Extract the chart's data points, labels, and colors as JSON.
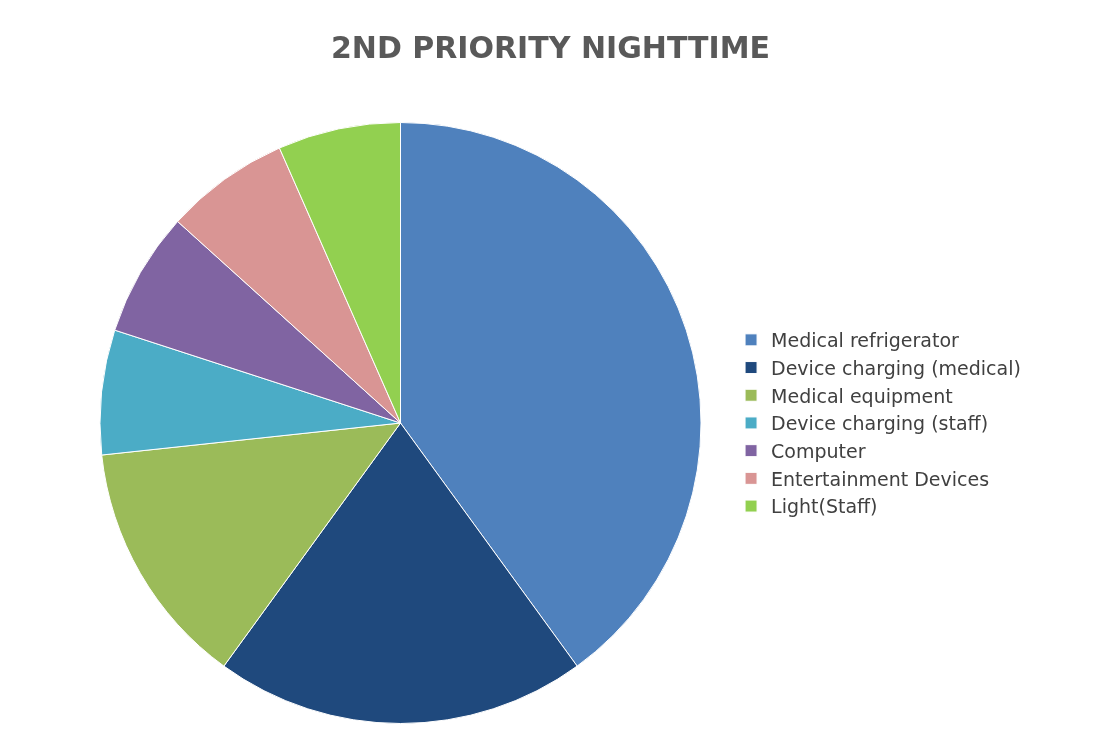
{
  "chart_data": {
    "type": "pie",
    "title": "2ND PRIORITY NIGHTTIME",
    "categories": [
      "Medical refrigerator",
      "Device charging (medical)",
      "Medical equipment",
      "Device charging (staff)",
      "Computer",
      "Entertainment Devices",
      "Light(Staff)"
    ],
    "values": [
      40,
      20,
      13.3,
      6.7,
      6.7,
      6.7,
      6.6
    ],
    "colors": [
      "#4f81bd",
      "#1f497d",
      "#9bbb59",
      "#4bacc6",
      "#8064a2",
      "#d99594",
      "#92d050"
    ],
    "legend": "right"
  }
}
